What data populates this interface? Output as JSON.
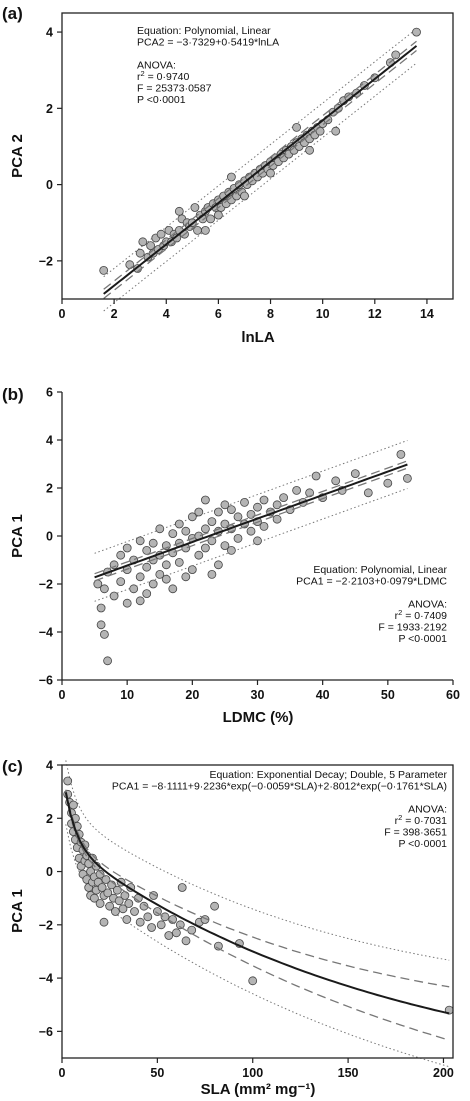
{
  "chart_data": [
    {
      "type": "scatter",
      "panel_label": "(a)",
      "xlabel": "lnLA",
      "ylabel": "PCA 2",
      "xlim": [
        0,
        15
      ],
      "ylim": [
        -3,
        4.5
      ],
      "xticks": [
        0,
        2,
        4,
        6,
        8,
        10,
        12,
        14
      ],
      "xtick_labels": [
        "0",
        "2",
        "4",
        "6",
        "8",
        "10",
        "12",
        "14"
      ],
      "yticks": [
        -2,
        0,
        2,
        4
      ],
      "ytick_labels": [
        "−2",
        "0",
        "2",
        "4"
      ],
      "annotation_align": "left",
      "annotation_lines": [
        "Equation: Polynomial, Linear",
        "PCA2 = −3·7329+0·5419*lnLA",
        "",
        "ANOVA:",
        "r2 = 0·9740",
        "F = 25373·0587",
        "P <0·0001"
      ],
      "fit": {
        "model": "linear",
        "intercept": -3.7329,
        "slope": 0.5419,
        "x_range": [
          1.6,
          13.6
        ],
        "ci_halfwidth": 0.12,
        "pi_halfwidth": 0.45
      },
      "points": [
        [
          1.6,
          -2.25
        ],
        [
          2.6,
          -2.1
        ],
        [
          2.9,
          -2.2
        ],
        [
          3.0,
          -1.8
        ],
        [
          3.1,
          -1.5
        ],
        [
          3.3,
          -1.9
        ],
        [
          3.4,
          -1.6
        ],
        [
          3.5,
          -1.8
        ],
        [
          3.6,
          -1.4
        ],
        [
          3.7,
          -1.7
        ],
        [
          3.8,
          -1.3
        ],
        [
          3.9,
          -1.6
        ],
        [
          4.0,
          -1.5
        ],
        [
          4.1,
          -1.2
        ],
        [
          4.2,
          -1.5
        ],
        [
          4.3,
          -1.3
        ],
        [
          4.4,
          -1.4
        ],
        [
          4.5,
          -1.2
        ],
        [
          4.6,
          -0.9
        ],
        [
          4.7,
          -1.3
        ],
        [
          4.8,
          -1.0
        ],
        [
          4.9,
          -1.1
        ],
        [
          5.0,
          -1.0
        ],
        [
          5.1,
          -0.6
        ],
        [
          5.2,
          -1.2
        ],
        [
          5.3,
          -0.8
        ],
        [
          5.4,
          -0.9
        ],
        [
          5.5,
          -0.7
        ],
        [
          5.6,
          -0.6
        ],
        [
          5.7,
          -0.9
        ],
        [
          5.8,
          -0.5
        ],
        [
          5.9,
          -0.6
        ],
        [
          6.0,
          -0.4
        ],
        [
          6.1,
          -0.6
        ],
        [
          6.2,
          -0.3
        ],
        [
          6.3,
          -0.5
        ],
        [
          6.4,
          -0.2
        ],
        [
          6.5,
          -0.4
        ],
        [
          6.6,
          -0.1
        ],
        [
          6.7,
          -0.3
        ],
        [
          6.8,
          0.0
        ],
        [
          6.9,
          -0.2
        ],
        [
          7.0,
          0.1
        ],
        [
          7.1,
          0.0
        ],
        [
          7.2,
          0.2
        ],
        [
          7.3,
          0.1
        ],
        [
          7.4,
          0.3
        ],
        [
          7.5,
          0.2
        ],
        [
          7.6,
          0.4
        ],
        [
          7.7,
          0.3
        ],
        [
          7.8,
          0.5
        ],
        [
          7.9,
          0.4
        ],
        [
          8.0,
          0.6
        ],
        [
          8.1,
          0.5
        ],
        [
          8.2,
          0.7
        ],
        [
          8.3,
          0.6
        ],
        [
          8.4,
          0.8
        ],
        [
          8.5,
          0.7
        ],
        [
          8.6,
          0.9
        ],
        [
          8.7,
          0.8
        ],
        [
          8.8,
          1.0
        ],
        [
          8.9,
          0.9
        ],
        [
          9.0,
          1.1
        ],
        [
          9.1,
          1.0
        ],
        [
          9.2,
          1.2
        ],
        [
          9.3,
          1.1
        ],
        [
          9.4,
          1.3
        ],
        [
          9.5,
          1.2
        ],
        [
          9.6,
          1.4
        ],
        [
          9.7,
          1.3
        ],
        [
          9.8,
          1.5
        ],
        [
          9.9,
          1.4
        ],
        [
          10.0,
          1.6
        ],
        [
          10.2,
          1.7
        ],
        [
          10.4,
          1.9
        ],
        [
          10.6,
          2.0
        ],
        [
          10.8,
          2.2
        ],
        [
          11.0,
          2.3
        ],
        [
          11.3,
          2.4
        ],
        [
          11.6,
          2.6
        ],
        [
          12.0,
          2.8
        ],
        [
          12.6,
          3.2
        ],
        [
          12.8,
          3.4
        ],
        [
          13.6,
          4.0
        ],
        [
          5.5,
          -1.2
        ],
        [
          6.5,
          0.2
        ],
        [
          7.0,
          -0.3
        ],
        [
          8.0,
          0.3
        ],
        [
          9.0,
          1.5
        ],
        [
          9.5,
          0.9
        ],
        [
          10.5,
          1.4
        ],
        [
          4.5,
          -0.7
        ],
        [
          6.0,
          -0.8
        ]
      ]
    },
    {
      "type": "scatter",
      "panel_label": "(b)",
      "xlabel": "LDMC (%)",
      "ylabel": "PCA 1",
      "xlim": [
        0,
        60
      ],
      "ylim": [
        -6,
        6
      ],
      "xticks": [
        0,
        10,
        20,
        30,
        40,
        50,
        60
      ],
      "xtick_labels": [
        "0",
        "10",
        "20",
        "30",
        "40",
        "50",
        "60"
      ],
      "yticks": [
        -6,
        -4,
        -2,
        0,
        2,
        4,
        6
      ],
      "ytick_labels": [
        "−6",
        "−4",
        "−2",
        "0",
        "2",
        "4",
        "6"
      ],
      "annotation_align": "right",
      "annotation_lines": [
        "Equation: Polynomial, Linear",
        "PCA1 = −2·2103+0·0979*LDMC",
        "",
        "ANOVA:",
        "r2 = 0·7409",
        "F = 1933·2192",
        "P <0·0001"
      ],
      "fit": {
        "model": "linear",
        "intercept": -2.2103,
        "slope": 0.0979,
        "x_range": [
          5,
          53
        ],
        "ci_halfwidth": 0.15,
        "pi_halfwidth": 1.0
      },
      "points": [
        [
          5.5,
          -2.0
        ],
        [
          6,
          -3.0
        ],
        [
          6,
          -3.7
        ],
        [
          6.5,
          -4.1
        ],
        [
          7,
          -5.2
        ],
        [
          6.5,
          -2.2
        ],
        [
          7,
          -1.5
        ],
        [
          8,
          -1.2
        ],
        [
          8,
          -2.5
        ],
        [
          9,
          -0.8
        ],
        [
          9,
          -1.9
        ],
        [
          10,
          -2.8
        ],
        [
          10,
          -0.5
        ],
        [
          10,
          -1.4
        ],
        [
          11,
          -1.0
        ],
        [
          11,
          -2.2
        ],
        [
          12,
          -0.2
        ],
        [
          12,
          -1.7
        ],
        [
          12,
          -2.7
        ],
        [
          13,
          -0.6
        ],
        [
          13,
          -1.3
        ],
        [
          14,
          -0.3
        ],
        [
          14,
          -2.0
        ],
        [
          14,
          -1.0
        ],
        [
          15,
          0.3
        ],
        [
          15,
          -0.8
        ],
        [
          15,
          -1.6
        ],
        [
          16,
          -0.4
        ],
        [
          16,
          -1.2
        ],
        [
          17,
          0.1
        ],
        [
          17,
          -0.7
        ],
        [
          17,
          -2.2
        ],
        [
          18,
          0.5
        ],
        [
          18,
          -0.3
        ],
        [
          18,
          -1.1
        ],
        [
          19,
          -0.5
        ],
        [
          19,
          0.2
        ],
        [
          20,
          0.8
        ],
        [
          20,
          -0.1
        ],
        [
          20,
          -1.4
        ],
        [
          21,
          1.0
        ],
        [
          21,
          0.0
        ],
        [
          21,
          -0.8
        ],
        [
          22,
          1.5
        ],
        [
          22,
          0.3
        ],
        [
          22,
          -0.5
        ],
        [
          23,
          0.6
        ],
        [
          23,
          -0.2
        ],
        [
          24,
          1.0
        ],
        [
          24,
          0.2
        ],
        [
          24,
          -1.2
        ],
        [
          25,
          0.5
        ],
        [
          25,
          1.3
        ],
        [
          25,
          -0.4
        ],
        [
          26,
          0.3
        ],
        [
          26,
          1.1
        ],
        [
          27,
          0.8
        ],
        [
          27,
          -0.1
        ],
        [
          28,
          1.4
        ],
        [
          28,
          0.5
        ],
        [
          29,
          0.9
        ],
        [
          29,
          0.2
        ],
        [
          30,
          1.2
        ],
        [
          30,
          0.6
        ],
        [
          31,
          1.5
        ],
        [
          31,
          0.4
        ],
        [
          32,
          1.0
        ],
        [
          33,
          1.3
        ],
        [
          33,
          0.7
        ],
        [
          34,
          1.6
        ],
        [
          35,
          1.1
        ],
        [
          36,
          1.9
        ],
        [
          37,
          1.4
        ],
        [
          38,
          1.8
        ],
        [
          39,
          2.5
        ],
        [
          40,
          1.6
        ],
        [
          42,
          2.3
        ],
        [
          43,
          1.9
        ],
        [
          45,
          2.6
        ],
        [
          47,
          1.8
        ],
        [
          50,
          2.2
        ],
        [
          52,
          3.4
        ],
        [
          53,
          2.4
        ],
        [
          16,
          -1.8
        ],
        [
          19,
          -1.7
        ],
        [
          23,
          -1.6
        ],
        [
          13,
          -2.4
        ],
        [
          26,
          -0.6
        ],
        [
          30,
          -0.2
        ]
      ]
    },
    {
      "type": "scatter",
      "panel_label": "(c)",
      "xlabel": "SLA (mm² mg⁻¹)",
      "ylabel": "PCA 1",
      "xlim": [
        0,
        205
      ],
      "ylim": [
        -7,
        4
      ],
      "xticks": [
        0,
        50,
        100,
        150,
        200
      ],
      "xtick_labels": [
        "0",
        "50",
        "100",
        "150",
        "200"
      ],
      "yticks": [
        -6,
        -4,
        -2,
        0,
        2,
        4
      ],
      "ytick_labels": [
        "−6",
        "−4",
        "−2",
        "0",
        "2",
        "4"
      ],
      "annotation_align": "right",
      "annotation_lines": [
        "Equation: Exponential Decay; Double, 5 Parameter",
        "PCA1 = −8·1111+9·2236*exp(−0·0059*SLA)+2·8012*exp(−0·1761*SLA)",
        "",
        "ANOVA:",
        "r2 = 0·7031",
        "F = 398·3651",
        "P <0·0001"
      ],
      "fit": {
        "model": "double_exponential_decay",
        "y0": -8.1111,
        "a": 9.2236,
        "b": 0.0059,
        "c": 2.8012,
        "d": 0.1761,
        "x_range": [
          2,
          203
        ],
        "ci_halfwidth": [
          0.1,
          1.0
        ],
        "pi_halfwidth": [
          1.2,
          2.0
        ]
      },
      "points": [
        [
          3,
          3.4
        ],
        [
          3,
          2.9
        ],
        [
          4,
          2.6
        ],
        [
          5,
          2.2
        ],
        [
          5,
          1.8
        ],
        [
          6,
          2.5
        ],
        [
          6,
          1.5
        ],
        [
          7,
          2.0
        ],
        [
          7,
          1.2
        ],
        [
          8,
          1.7
        ],
        [
          8,
          0.9
        ],
        [
          9,
          1.4
        ],
        [
          9,
          0.5
        ],
        [
          10,
          1.1
        ],
        [
          10,
          0.2
        ],
        [
          11,
          0.8
        ],
        [
          11,
          -0.1
        ],
        [
          12,
          1.0
        ],
        [
          12,
          0.4
        ],
        [
          13,
          0.6
        ],
        [
          13,
          -0.3
        ],
        [
          14,
          0.3
        ],
        [
          14,
          -0.6
        ],
        [
          15,
          0.0
        ],
        [
          15,
          -0.9
        ],
        [
          16,
          0.5
        ],
        [
          16,
          -0.4
        ],
        [
          17,
          -0.2
        ],
        [
          17,
          -1.0
        ],
        [
          18,
          0.2
        ],
        [
          18,
          -0.7
        ],
        [
          19,
          -0.4
        ],
        [
          20,
          -1.2
        ],
        [
          20,
          -0.1
        ],
        [
          21,
          -0.6
        ],
        [
          22,
          -0.9
        ],
        [
          22,
          -1.9
        ],
        [
          23,
          -0.3
        ],
        [
          24,
          -0.8
        ],
        [
          25,
          -1.3
        ],
        [
          26,
          -0.5
        ],
        [
          27,
          -1.0
        ],
        [
          28,
          -1.5
        ],
        [
          29,
          -0.7
        ],
        [
          30,
          -1.1
        ],
        [
          31,
          -0.4
        ],
        [
          32,
          -1.4
        ],
        [
          33,
          -0.9
        ],
        [
          34,
          -1.8
        ],
        [
          35,
          -1.2
        ],
        [
          36,
          -0.6
        ],
        [
          38,
          -1.5
        ],
        [
          40,
          -1.0
        ],
        [
          41,
          -1.9
        ],
        [
          43,
          -1.3
        ],
        [
          45,
          -1.7
        ],
        [
          47,
          -2.1
        ],
        [
          48,
          -0.9
        ],
        [
          50,
          -1.5
        ],
        [
          52,
          -2.0
        ],
        [
          54,
          -1.7
        ],
        [
          56,
          -2.4
        ],
        [
          58,
          -1.8
        ],
        [
          60,
          -2.3
        ],
        [
          62,
          -2.0
        ],
        [
          63,
          -0.6
        ],
        [
          65,
          -2.6
        ],
        [
          68,
          -2.2
        ],
        [
          72,
          -1.9
        ],
        [
          75,
          -1.8
        ],
        [
          80,
          -1.3
        ],
        [
          82,
          -2.8
        ],
        [
          93,
          -2.7
        ],
        [
          100,
          -4.1
        ],
        [
          203,
          -5.2
        ]
      ]
    }
  ]
}
